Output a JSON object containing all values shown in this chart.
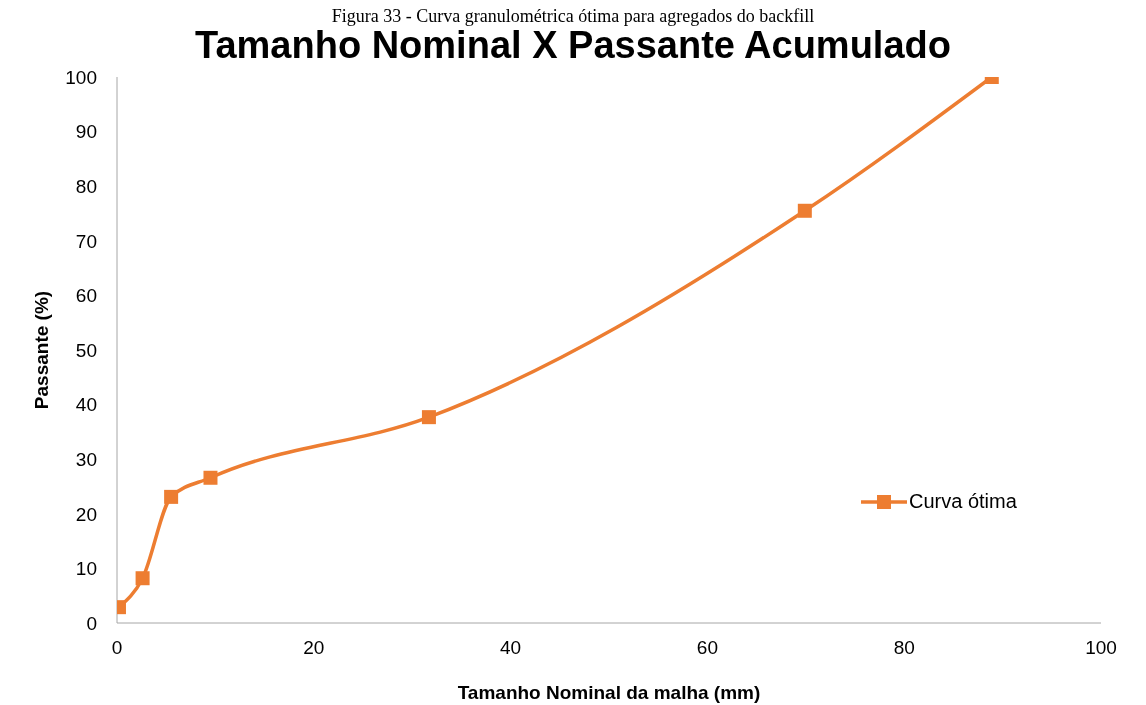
{
  "chart_data": {
    "type": "line",
    "title": "Tamanho Nominal X Passante Acumulado",
    "xlabel": "Tamanho Nominal da malha (mm)",
    "ylabel": "Passante (%)",
    "annotations": [
      "Figura 33 - Curva granulométrica ótima para agregados do backfill"
    ],
    "x": [
      0.2,
      2.6,
      5.5,
      9.5,
      31.7,
      69.9,
      88.9
    ],
    "series": [
      {
        "name": "Curva ótima",
        "color": "#ed7d31",
        "values": [
          2.9,
          8.2,
          23.1,
          26.6,
          37.7,
          75.5,
          100
        ]
      }
    ],
    "xlim": [
      0,
      100
    ],
    "xticks": [
      0,
      20,
      40,
      60,
      80,
      100
    ],
    "ylim": [
      0,
      100
    ],
    "yticks": [
      0,
      10,
      20,
      30,
      40,
      50,
      60,
      70,
      80,
      90,
      100
    ],
    "grid": false,
    "legend": "right",
    "marker": "square",
    "line_style": "solid"
  }
}
